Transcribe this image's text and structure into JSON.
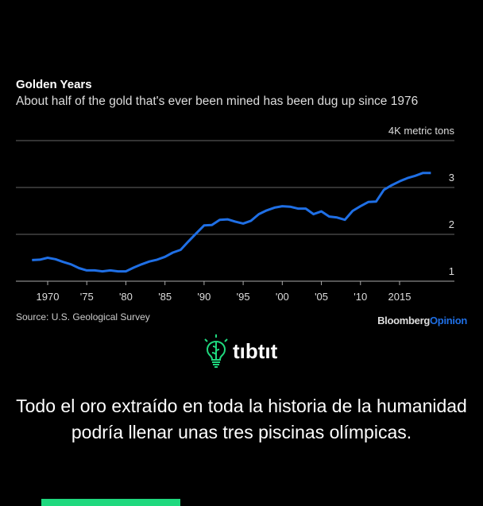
{
  "chart_data": {
    "type": "line",
    "title": "Golden Years",
    "subtitle": "About half of the gold that's ever been mined has been dug up since 1976",
    "ylabel": "4K metric tons",
    "ylim": [
      1,
      4
    ],
    "yticks": [
      {
        "v": 1,
        "label": "1"
      },
      {
        "v": 2,
        "label": "2"
      },
      {
        "v": 3,
        "label": "3"
      },
      {
        "v": 4,
        "label": ""
      }
    ],
    "xlim": [
      1966,
      2021
    ],
    "xticks": [
      {
        "v": 1970,
        "label": "1970"
      },
      {
        "v": 1975,
        "label": "'75"
      },
      {
        "v": 1980,
        "label": "'80"
      },
      {
        "v": 1985,
        "label": "'85"
      },
      {
        "v": 1990,
        "label": "'90"
      },
      {
        "v": 1995,
        "label": "'95"
      },
      {
        "v": 2000,
        "label": "'00"
      },
      {
        "v": 2005,
        "label": "'05"
      },
      {
        "v": 2010,
        "label": "'10"
      },
      {
        "v": 2015,
        "label": "2015"
      }
    ],
    "grid": true,
    "color": "#1f6fe5",
    "x": [
      1968,
      1969,
      1970,
      1971,
      1972,
      1973,
      1974,
      1975,
      1976,
      1977,
      1978,
      1979,
      1980,
      1981,
      1982,
      1983,
      1984,
      1985,
      1986,
      1987,
      1988,
      1989,
      1990,
      1991,
      1992,
      1993,
      1994,
      1995,
      1996,
      1997,
      1998,
      1999,
      2000,
      2001,
      2002,
      2003,
      2004,
      2005,
      2006,
      2007,
      2008,
      2009,
      2010,
      2011,
      2012,
      2013,
      2014,
      2015,
      2016,
      2017,
      2018,
      2019
    ],
    "y": [
      1.45,
      1.46,
      1.5,
      1.47,
      1.41,
      1.36,
      1.28,
      1.23,
      1.23,
      1.21,
      1.23,
      1.21,
      1.21,
      1.29,
      1.36,
      1.42,
      1.46,
      1.52,
      1.61,
      1.67,
      1.85,
      2.02,
      2.19,
      2.2,
      2.31,
      2.32,
      2.27,
      2.23,
      2.29,
      2.43,
      2.51,
      2.57,
      2.6,
      2.59,
      2.55,
      2.55,
      2.43,
      2.49,
      2.38,
      2.36,
      2.31,
      2.5,
      2.6,
      2.69,
      2.7,
      2.95,
      3.05,
      3.13,
      3.2,
      3.25,
      3.31,
      3.31
    ],
    "source": "Source: U.S. Geological Survey"
  },
  "brand": {
    "name": "Bloomberg",
    "suffix": "Opinion"
  },
  "logo": {
    "text": "tıbtıt",
    "color": "#1fd87e"
  },
  "caption": "Todo el oro extraído en toda la historia de la humanidad podría llenar unas tres piscinas olímpicas."
}
